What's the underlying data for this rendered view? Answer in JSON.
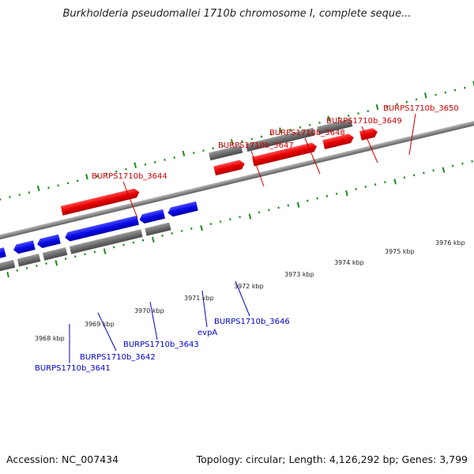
{
  "title": "Burkholderia pseudomallei 1710b chromosome I, complete seque...",
  "footer": {
    "accession": "Accession: NC_007434",
    "summary": "Topology: circular; Length: 4,126,292 bp; Genes: 3,799"
  },
  "colors": {
    "forward_gene": "#e60000",
    "reverse_gene": "#0a0ae6",
    "other_feature": "#6e6e6e",
    "backbone": "#8a8a8a",
    "ticks": "#1c8c1c",
    "forward_label": "#cc0000",
    "reverse_label": "#0000cc"
  },
  "ruler": {
    "tick_labels": [
      "3968 kbp",
      "3969 kbp",
      "3970 kbp",
      "3971 kbp",
      "3972 kbp",
      "3973 kbp",
      "3974 kbp",
      "3975 kbp",
      "3976 kbp"
    ]
  },
  "forward_labels": [
    "BURPS1710b_3644",
    "BURPS1710b_3647",
    "BURPS1710b_3648",
    "BURPS1710b_3649",
    "BURPS1710b_3650"
  ],
  "reverse_labels": [
    "BURPS1710b_3641",
    "BURPS1710b_3642",
    "BURPS1710b_3643",
    "evpA",
    "BURPS1710b_3646"
  ]
}
